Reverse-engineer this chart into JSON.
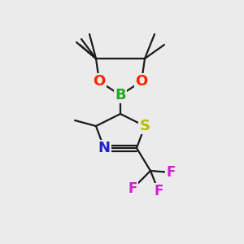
{
  "bg_color": "#ebebeb",
  "bond_color": "#1a1a1a",
  "bond_width": 1.6,
  "figsize": [
    3.0,
    3.0
  ],
  "dpi": 100,
  "xlim": [
    0,
    300
  ],
  "ylim": [
    0,
    300
  ]
}
